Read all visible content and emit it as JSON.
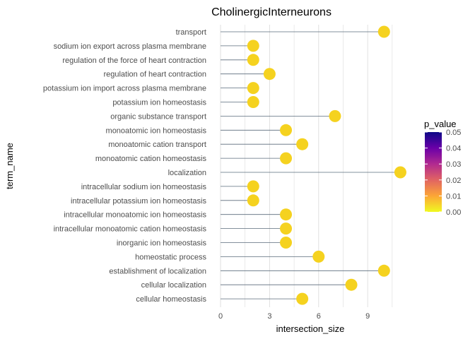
{
  "chart_data": {
    "type": "lollipop",
    "title": "CholinergicInterneurons",
    "xlabel": "intersection_size",
    "ylabel": "term_name",
    "xlim": [
      0,
      11.5
    ],
    "x_ticks": [
      0,
      3,
      6,
      9
    ],
    "grid": "vertical",
    "legend": {
      "title": "p_value",
      "placement": "right",
      "ticks": [
        "0.05",
        "0.04",
        "0.03",
        "0.02",
        "0.01",
        "0.00"
      ],
      "tick_values": [
        0.05,
        0.04,
        0.03,
        0.02,
        0.01,
        0.0
      ],
      "range": [
        0,
        0.05
      ],
      "colors": [
        "#0d0887",
        "#6a00a8",
        "#b12a90",
        "#e16462",
        "#fca636",
        "#f0f921"
      ]
    },
    "stem_color": "#5a6b7b",
    "point_color": "#f5d21f",
    "terms": [
      {
        "term_name": "transport",
        "intersection_size": 10,
        "p_value": 0.0
      },
      {
        "term_name": "sodium ion export across plasma membrane",
        "intersection_size": 2,
        "p_value": 0.0
      },
      {
        "term_name": "regulation of the force of heart contraction",
        "intersection_size": 2,
        "p_value": 0.0
      },
      {
        "term_name": "regulation of heart contraction",
        "intersection_size": 3,
        "p_value": 0.0
      },
      {
        "term_name": "potassium ion import across plasma membrane",
        "intersection_size": 2,
        "p_value": 0.0
      },
      {
        "term_name": "potassium ion homeostasis",
        "intersection_size": 2,
        "p_value": 0.0
      },
      {
        "term_name": "organic substance transport",
        "intersection_size": 7,
        "p_value": 0.0
      },
      {
        "term_name": "monoatomic ion homeostasis",
        "intersection_size": 4,
        "p_value": 0.0
      },
      {
        "term_name": "monoatomic cation transport",
        "intersection_size": 5,
        "p_value": 0.0
      },
      {
        "term_name": "monoatomic cation homeostasis",
        "intersection_size": 4,
        "p_value": 0.0
      },
      {
        "term_name": "localization",
        "intersection_size": 11,
        "p_value": 0.0
      },
      {
        "term_name": "intracellular sodium ion homeostasis",
        "intersection_size": 2,
        "p_value": 0.0
      },
      {
        "term_name": "intracellular potassium ion homeostasis",
        "intersection_size": 2,
        "p_value": 0.0
      },
      {
        "term_name": "intracellular monoatomic ion homeostasis",
        "intersection_size": 4,
        "p_value": 0.0
      },
      {
        "term_name": "intracellular monoatomic cation homeostasis",
        "intersection_size": 4,
        "p_value": 0.0
      },
      {
        "term_name": "inorganic ion homeostasis",
        "intersection_size": 4,
        "p_value": 0.0
      },
      {
        "term_name": "homeostatic process",
        "intersection_size": 6,
        "p_value": 0.0
      },
      {
        "term_name": "establishment of localization",
        "intersection_size": 10,
        "p_value": 0.0
      },
      {
        "term_name": "cellular localization",
        "intersection_size": 8,
        "p_value": 0.0
      },
      {
        "term_name": "cellular homeostasis",
        "intersection_size": 5,
        "p_value": 0.0
      }
    ]
  }
}
